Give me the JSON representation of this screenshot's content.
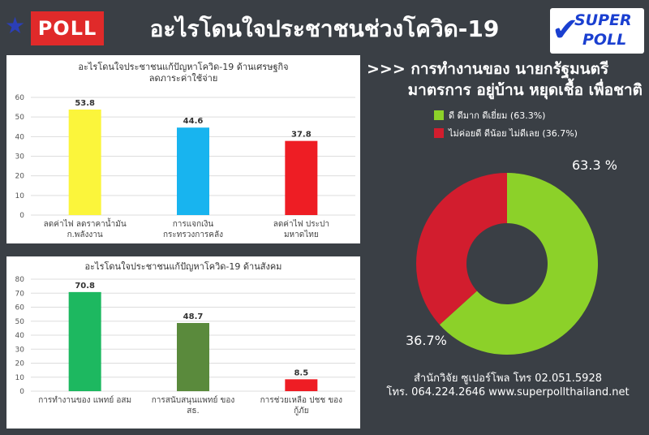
{
  "header": {
    "poll_label": "POLL",
    "title": "อะไรโดนใจประชาชนช่วงโควิด-19",
    "logo_line1": "SUPER",
    "logo_line2": "POLL"
  },
  "right": {
    "title_line1": ">>> การทำงานของ นายกรัฐมนตรี",
    "title_line2": "มาตรการ อยู่บ้าน หยุดเชื้อ เพื่อชาติ",
    "footer_line1": "สำนักวิจัย ซูเปอร์โพล โทร 02.051.5928",
    "footer_line2": "โทร. 064.224.2646 www.superpollthailand.net"
  },
  "chart_data": [
    {
      "type": "bar",
      "title": "อะไรโดนใจประชาชนแก้ปัญหาโควิด-19 ด้านเศรษฐกิจ ลดภาระค่าใช้จ่าย",
      "title_line1": "อะไรโดนใจประชาชนแก้ปัญหาโควิด-19 ด้านเศรษฐกิจ",
      "title_line2": "ลดภาระค่าใช้จ่าย",
      "categories": [
        [
          "ลดค่าไฟ ลดราคาน้ำมัน",
          "ก.พลังงาน"
        ],
        [
          "การแจกเงิน",
          "กระทรวงการคลัง"
        ],
        [
          "ลดค่าไฟ ประปา",
          "มหาดไทย"
        ]
      ],
      "values": [
        53.8,
        44.6,
        37.8
      ],
      "value_labels": [
        "53.8",
        "44.6",
        "37.8"
      ],
      "colors": [
        "#fbf53b",
        "#18b4ef",
        "#ee1d24"
      ],
      "ylim": [
        0,
        60
      ],
      "yticks": [
        0,
        10,
        20,
        30,
        40,
        50,
        60
      ],
      "ytick_labels": [
        "0",
        "10",
        "20",
        "30",
        "40",
        "50",
        "60"
      ],
      "grid": true
    },
    {
      "type": "bar",
      "title": "อะไรโดนใจประชาชนแก้ปัญหาโควิด-19 ด้านสังคม",
      "title_line1": "อะไรโดนใจประชาชนแก้ปัญหาโควิด-19 ด้านสังคม",
      "title_line2": "",
      "categories": [
        [
          "การทำงานของ แพทย์ อสม",
          ""
        ],
        [
          "การสนับสนุนแพทย์ ของ",
          "สธ."
        ],
        [
          "การช่วยเหลือ ปชช ของ",
          "กู้ภัย"
        ]
      ],
      "values": [
        70.8,
        48.7,
        8.5
      ],
      "value_labels": [
        "70.8",
        "48.7",
        "8.5"
      ],
      "colors": [
        "#1db860",
        "#5a8a3c",
        "#ee1d24"
      ],
      "ylim": [
        0,
        80
      ],
      "yticks": [
        0,
        10,
        20,
        30,
        40,
        50,
        60,
        70,
        80
      ],
      "ytick_labels": [
        "0",
        "10",
        "20",
        "30",
        "40",
        "50",
        "60",
        "70",
        "80"
      ],
      "grid": true
    },
    {
      "type": "pie",
      "donut": true,
      "legend_position": "top-left",
      "categories": [
        "ดี ดีมาก ดีเยี่ยม (63.3%)",
        "ไม่ค่อยดี ดีน้อย ไม่ดีเลย (36.7%)"
      ],
      "values": [
        63.3,
        36.7
      ],
      "value_labels": [
        "63.3 %",
        "36.7%"
      ],
      "colors": [
        "#8cd129",
        "#d21d2e"
      ]
    }
  ]
}
